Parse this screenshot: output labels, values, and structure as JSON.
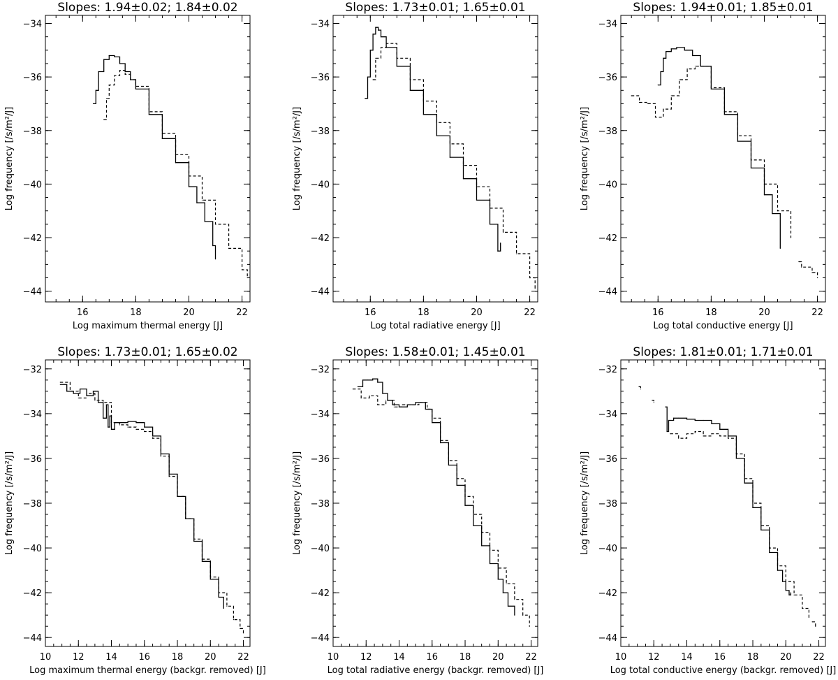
{
  "chart_data": [
    {
      "type": "line",
      "title": "Slopes: 1.94±0.02; 1.84±0.02",
      "xlabel": "Log maximum thermal energy [J]",
      "ylabel": "Log frequency [/s/m²/J]",
      "xlim": [
        14.6,
        22.3
      ],
      "ylim": [
        -44.4,
        -33.7
      ],
      "xticks": [
        16,
        18,
        20,
        22
      ],
      "yticks": [
        -44,
        -42,
        -40,
        -38,
        -36,
        -34
      ],
      "series": [
        {
          "style": "solid",
          "x": [
            16.4,
            16.5,
            16.6,
            16.8,
            17.0,
            17.2,
            17.4,
            17.6,
            17.8,
            18.0,
            18.5,
            19.0,
            19.5,
            20.0,
            20.3,
            20.6,
            20.9,
            21.0
          ],
          "y": [
            -37.0,
            -36.5,
            -35.8,
            -35.35,
            -35.2,
            -35.25,
            -35.5,
            -35.8,
            -36.1,
            -36.45,
            -37.4,
            -38.3,
            -39.2,
            -40.1,
            -40.7,
            -41.4,
            -42.3,
            -42.8
          ]
        },
        {
          "style": "dashed",
          "x": [
            16.8,
            16.9,
            17.0,
            17.2,
            17.4,
            17.6,
            17.8,
            18.0,
            18.5,
            19.0,
            19.5,
            20.0,
            20.5,
            21.0,
            21.5,
            22.0,
            22.2
          ],
          "y": [
            -37.6,
            -36.8,
            -36.3,
            -35.95,
            -35.75,
            -35.9,
            -36.1,
            -36.35,
            -37.3,
            -38.1,
            -38.9,
            -39.7,
            -40.6,
            -41.5,
            -42.4,
            -43.2,
            -43.5
          ]
        }
      ]
    },
    {
      "type": "line",
      "title": "Slopes: 1.73±0.01; 1.65±0.01",
      "xlabel": "Log total radiative energy [J]",
      "ylabel": "Log frequency [/s/m²/J]",
      "xlim": [
        14.6,
        22.3
      ],
      "ylim": [
        -44.4,
        -33.7
      ],
      "xticks": [
        16,
        18,
        20,
        22
      ],
      "yticks": [
        -44,
        -42,
        -40,
        -38,
        -36,
        -34
      ],
      "series": [
        {
          "style": "solid",
          "x": [
            15.8,
            15.9,
            16.0,
            16.1,
            16.2,
            16.3,
            16.4,
            16.6,
            17.0,
            17.5,
            18.0,
            18.5,
            19.0,
            19.5,
            20.0,
            20.5,
            20.8,
            20.9
          ],
          "y": [
            -36.8,
            -36.0,
            -35.0,
            -34.4,
            -34.15,
            -34.25,
            -34.5,
            -34.9,
            -35.6,
            -36.5,
            -37.4,
            -38.2,
            -39.0,
            -39.8,
            -40.6,
            -41.5,
            -42.5,
            -42.2
          ]
        },
        {
          "style": "dashed",
          "x": [
            16.1,
            16.2,
            16.4,
            16.6,
            17.0,
            17.5,
            18.0,
            18.5,
            19.0,
            19.5,
            20.0,
            20.5,
            21.0,
            21.5,
            22.0,
            22.2
          ],
          "y": [
            -36.1,
            -35.3,
            -34.9,
            -34.75,
            -35.3,
            -36.1,
            -36.9,
            -37.7,
            -38.5,
            -39.3,
            -40.1,
            -40.9,
            -41.8,
            -42.6,
            -43.5,
            -43.9
          ]
        }
      ]
    },
    {
      "type": "line",
      "title": "Slopes: 1.94±0.01; 1.85±0.01",
      "xlabel": "Log total conductive energy [J]",
      "ylabel": "Log frequency [/s/m²/J]",
      "xlim": [
        14.6,
        22.3
      ],
      "ylim": [
        -44.4,
        -33.7
      ],
      "xticks": [
        16,
        18,
        20,
        22
      ],
      "yticks": [
        -44,
        -42,
        -40,
        -38,
        -36,
        -34
      ],
      "series": [
        {
          "style": "solid",
          "x": [
            16.0,
            16.1,
            16.2,
            16.3,
            16.5,
            16.7,
            17.0,
            17.3,
            17.6,
            18.0,
            18.5,
            19.0,
            19.5,
            20.0,
            20.3,
            20.6
          ],
          "y": [
            -36.3,
            -35.8,
            -35.3,
            -35.05,
            -34.95,
            -34.9,
            -35.0,
            -35.2,
            -35.6,
            -36.45,
            -37.4,
            -38.4,
            -39.4,
            -40.4,
            -41.1,
            -42.4
          ]
        },
        {
          "style": "dashed",
          "x": [
            15.0,
            15.3,
            15.6,
            15.9,
            16.2,
            16.5,
            16.8,
            17.1,
            17.4,
            18.0,
            18.5,
            19.0,
            19.5,
            20.0,
            20.5,
            21.0
          ],
          "y": [
            -36.7,
            -36.95,
            -37.0,
            -37.5,
            -37.2,
            -36.7,
            -36.1,
            -35.7,
            -35.6,
            -36.4,
            -37.3,
            -38.2,
            -39.1,
            -40.0,
            -41.0,
            -42.0
          ]
        },
        {
          "style": "dashed",
          "x": [
            21.3,
            21.4,
            21.8,
            22.0
          ],
          "y": [
            -42.9,
            -43.1,
            -43.3,
            -43.5
          ]
        }
      ]
    },
    {
      "type": "line",
      "title": "Slopes: 1.73±0.01; 1.65±0.02",
      "xlabel": "Log maximum thermal energy (backgr. removed) [J]",
      "ylabel": "Log frequency [/s/m²/J]",
      "xlim": [
        10.0,
        22.4
      ],
      "ylim": [
        -44.4,
        -31.6
      ],
      "xticks": [
        10,
        12,
        14,
        16,
        18,
        20,
        22
      ],
      "yticks": [
        -44,
        -42,
        -40,
        -38,
        -36,
        -34,
        -32
      ],
      "series": [
        {
          "style": "solid",
          "x": [
            10.9,
            11.3,
            11.7,
            12.1,
            12.5,
            12.9,
            13.2,
            13.5,
            13.7,
            13.8,
            13.9,
            14.0,
            14.2,
            14.6,
            15.0,
            15.5,
            16.0,
            16.5,
            17.0,
            17.5,
            18.0,
            18.5,
            19.0,
            19.5,
            20.0,
            20.5,
            20.8
          ],
          "y": [
            -32.7,
            -33.0,
            -33.1,
            -32.9,
            -33.2,
            -33.0,
            -33.5,
            -34.2,
            -33.6,
            -34.6,
            -34.1,
            -34.7,
            -34.4,
            -34.4,
            -34.35,
            -34.4,
            -34.6,
            -35.0,
            -35.8,
            -36.7,
            -37.7,
            -38.7,
            -39.7,
            -40.6,
            -41.4,
            -42.2,
            -42.7
          ]
        },
        {
          "style": "dashed",
          "x": [
            10.9,
            11.5,
            12.0,
            12.5,
            13.0,
            13.5,
            14.0,
            14.5,
            15.0,
            15.5,
            16.0,
            16.5,
            17.0,
            17.5,
            18.0,
            18.5,
            19.0,
            19.5,
            20.0,
            20.5,
            21.0,
            21.4,
            21.8,
            22.0
          ],
          "y": [
            -32.6,
            -33.0,
            -33.3,
            -33.1,
            -33.4,
            -33.5,
            -34.4,
            -34.5,
            -34.6,
            -34.7,
            -34.8,
            -35.1,
            -35.9,
            -36.8,
            -37.7,
            -38.7,
            -39.6,
            -40.5,
            -41.3,
            -42.0,
            -42.6,
            -43.2,
            -43.6,
            -43.8
          ]
        }
      ]
    },
    {
      "type": "line",
      "title": "Slopes: 1.58±0.01; 1.45±0.01",
      "xlabel": "Log total radiative energy (backgr. removed) [J]",
      "ylabel": "Log frequency [/s/m²/J]",
      "xlim": [
        10.0,
        22.4
      ],
      "ylim": [
        -44.4,
        -31.6
      ],
      "xticks": [
        10,
        12,
        14,
        16,
        18,
        20,
        22
      ],
      "yticks": [
        -44,
        -42,
        -40,
        -38,
        -36,
        -34,
        -32
      ],
      "series": [
        {
          "style": "solid",
          "x": [
            11.5,
            11.8,
            12.1,
            12.4,
            12.7,
            13.0,
            13.3,
            13.6,
            14.0,
            14.5,
            15.0,
            15.3,
            15.6,
            16.0,
            16.5,
            17.0,
            17.5,
            18.0,
            18.5,
            19.0,
            19.5,
            20.0,
            20.3,
            20.6,
            21.0
          ],
          "y": [
            -32.8,
            -32.5,
            -32.5,
            -32.45,
            -32.6,
            -33.1,
            -33.4,
            -33.6,
            -33.7,
            -33.6,
            -33.5,
            -33.5,
            -33.8,
            -34.4,
            -35.3,
            -36.3,
            -37.2,
            -38.1,
            -39.0,
            -39.9,
            -40.7,
            -41.4,
            -42.0,
            -42.6,
            -43.0
          ]
        },
        {
          "style": "dashed",
          "x": [
            11.2,
            11.7,
            12.2,
            12.7,
            13.2,
            13.7,
            14.2,
            14.7,
            15.2,
            15.7,
            16.0,
            16.5,
            17.0,
            17.5,
            18.0,
            18.5,
            19.0,
            19.5,
            20.0,
            20.5,
            21.0,
            21.5,
            21.9
          ],
          "y": [
            -32.9,
            -33.3,
            -33.2,
            -33.6,
            -33.4,
            -33.7,
            -33.6,
            -33.6,
            -33.5,
            -33.8,
            -34.2,
            -35.2,
            -36.1,
            -36.9,
            -37.7,
            -38.5,
            -39.3,
            -40.1,
            -40.9,
            -41.6,
            -42.3,
            -43.0,
            -43.5
          ]
        }
      ]
    },
    {
      "type": "line",
      "title": "Slopes: 1.81±0.01; 1.71±0.01",
      "xlabel": "Log total conductive energy (backgr. removed) [J]",
      "ylabel": "Log frequency [/s/m²/J]",
      "xlim": [
        10.0,
        22.4
      ],
      "ylim": [
        -44.4,
        -31.6
      ],
      "xticks": [
        10,
        12,
        14,
        16,
        18,
        20,
        22
      ],
      "yticks": [
        -44,
        -42,
        -40,
        -38,
        -36,
        -34,
        -32
      ],
      "series": [
        {
          "style": "solid",
          "x": [
            12.7,
            12.8,
            12.9,
            13.0,
            13.2,
            13.5,
            14.0,
            14.5,
            15.0,
            15.5,
            16.0,
            16.5,
            17.0,
            17.5,
            18.0,
            18.5,
            19.0,
            19.5,
            19.8,
            20.0,
            20.2,
            20.3
          ],
          "y": [
            -33.7,
            -34.8,
            -34.3,
            -34.3,
            -34.2,
            -34.2,
            -34.25,
            -34.3,
            -34.3,
            -34.45,
            -34.7,
            -35.0,
            -36.0,
            -37.1,
            -38.2,
            -39.2,
            -40.2,
            -41.0,
            -41.5,
            -41.9,
            -42.1,
            -42.0
          ]
        },
        {
          "style": "dashed",
          "x": [
            13.0,
            13.5,
            14.0,
            14.5,
            15.0,
            15.5,
            16.0,
            16.5,
            17.0,
            17.5,
            18.0,
            18.5,
            19.0,
            19.5,
            20.0,
            20.5,
            21.0,
            21.4
          ],
          "y": [
            -34.9,
            -35.1,
            -34.9,
            -34.8,
            -35.0,
            -34.9,
            -35.0,
            -35.1,
            -35.8,
            -36.9,
            -38.0,
            -39.0,
            -40.0,
            -40.8,
            -41.5,
            -42.1,
            -42.7,
            -43.1
          ]
        },
        {
          "style": "dashed",
          "x": [
            11.1,
            11.2
          ],
          "y": [
            -32.8,
            -32.9
          ]
        },
        {
          "style": "dashed",
          "x": [
            11.9,
            12.0
          ],
          "y": [
            -33.4,
            -33.5
          ]
        },
        {
          "style": "dashed",
          "x": [
            21.6,
            21.8
          ],
          "y": [
            -43.3,
            -43.5
          ]
        }
      ]
    }
  ]
}
